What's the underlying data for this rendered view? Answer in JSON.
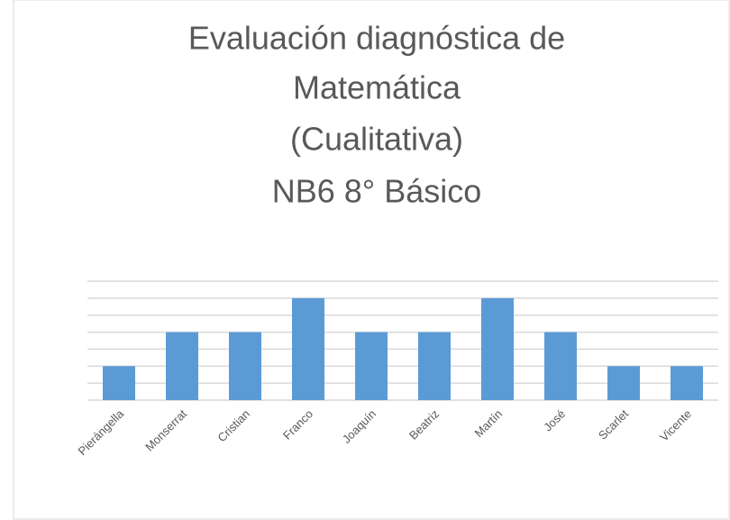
{
  "chart_data": {
    "type": "bar",
    "title": [
      "Evaluación diagnóstica de",
      "Matemática",
      "(Cualitativa)",
      "NB6 8° Básico"
    ],
    "categories": [
      "Pierángella",
      "Monserrat",
      "Cristian",
      "Franco",
      "Joaquín",
      "Beatriz",
      "Martín",
      "José",
      "Scarlet",
      "Vicente"
    ],
    "values": [
      2,
      4,
      4,
      6,
      4,
      4,
      6,
      4,
      2,
      2
    ],
    "color": "#5b9bd5",
    "ylim": [
      0,
      7
    ],
    "yticks": [
      0,
      1,
      2,
      3,
      4,
      5,
      6,
      7
    ],
    "grid": true
  }
}
